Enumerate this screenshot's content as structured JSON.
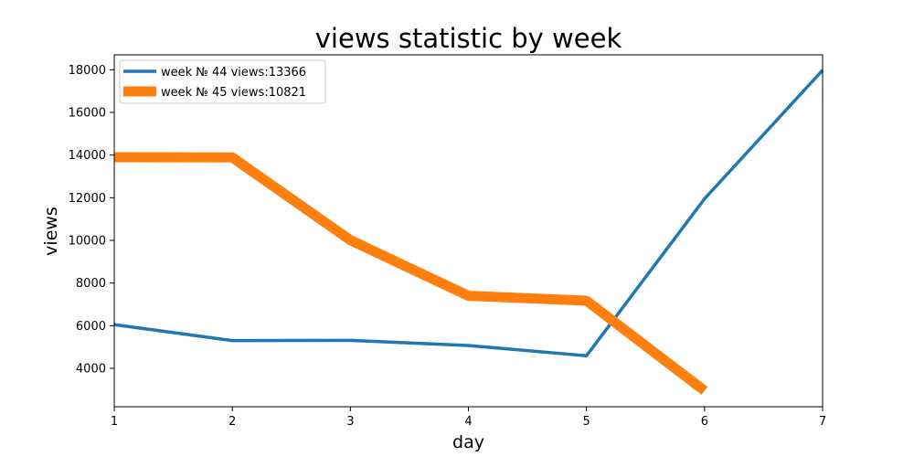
{
  "chart_data": {
    "type": "line",
    "title": "views statistic by week",
    "xlabel": "day",
    "ylabel": "views",
    "xlim": [
      1,
      7
    ],
    "ylim": [
      2200,
      18700
    ],
    "xticks": [
      1,
      2,
      3,
      4,
      5,
      6,
      7
    ],
    "yticks": [
      4000,
      6000,
      8000,
      10000,
      12000,
      14000,
      16000,
      18000
    ],
    "grid": false,
    "legend_position": "top-left",
    "series": [
      {
        "name": "week № 44 views:13366",
        "color": "#1f77b4",
        "x": [
          1,
          2,
          3,
          4,
          5,
          6,
          7
        ],
        "y": [
          6050,
          5300,
          5310,
          5070,
          4590,
          11950,
          17980
        ]
      },
      {
        "name": "week № 45 views:10821",
        "color": "#ff7f0e",
        "x": [
          1,
          2,
          3,
          4,
          5,
          6
        ],
        "y": [
          13900,
          13890,
          10010,
          7400,
          7170,
          2950
        ]
      }
    ]
  }
}
